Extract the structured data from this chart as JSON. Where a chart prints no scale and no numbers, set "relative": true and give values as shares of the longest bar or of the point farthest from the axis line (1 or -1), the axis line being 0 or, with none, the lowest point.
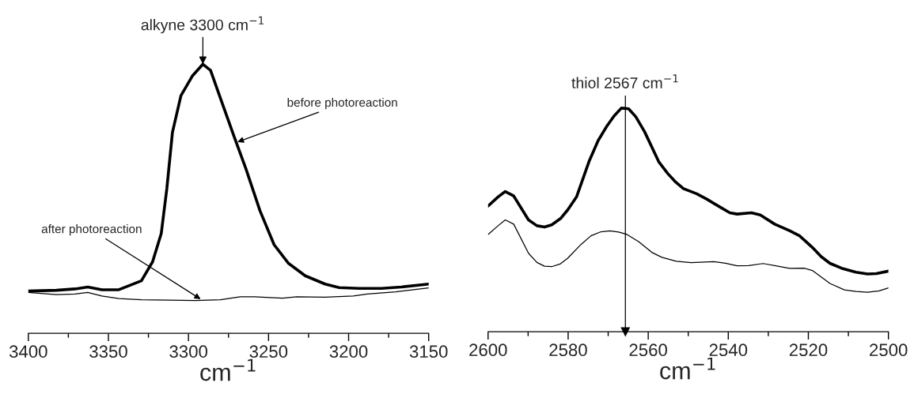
{
  "chart_data": [
    {
      "type": "line",
      "relative": true,
      "xlabel": "cm$^{−1}$",
      "xlim": [
        3400,
        3150
      ],
      "xticks": [
        3400,
        3350,
        3300,
        3250,
        3200,
        3150
      ],
      "series": [
        {
          "color": "#000000",
          "x": [
            3400,
            3382.4,
            3370.8,
            3362.9,
            3354,
            3343.5,
            3329.4,
            3322.4,
            3317,
            3313.5,
            3310,
            3304.7,
            3297.6,
            3291,
            3286.2,
            3280,
            3271.2,
            3264.1,
            3255.3,
            3246.5,
            3237.7,
            3227.1,
            3214.7,
            3205.9,
            3193.6,
            3179.5,
            3167.1,
            3150
          ],
          "values": [
            0.157,
            0.16,
            0.165,
            0.172,
            0.162,
            0.162,
            0.195,
            0.266,
            0.371,
            0.538,
            0.747,
            0.883,
            0.956,
            1.0,
            0.977,
            0.873,
            0.726,
            0.611,
            0.455,
            0.329,
            0.261,
            0.214,
            0.183,
            0.17,
            0.167,
            0.167,
            0.172,
            0.183
          ]
        },
        {
          "color": "#000000",
          "x": [
            3400,
            3382.4,
            3370.9,
            3362.9,
            3354.1,
            3343.5,
            3329.4,
            3311.8,
            3295.9,
            3280.0,
            3267.7,
            3258.9,
            3241.2,
            3232.4,
            3214.7,
            3197.1,
            3188.3,
            3170.6,
            3150
          ],
          "values": [
            0.152,
            0.144,
            0.146,
            0.152,
            0.139,
            0.129,
            0.125,
            0.123,
            0.122,
            0.125,
            0.136,
            0.136,
            0.131,
            0.136,
            0.134,
            0.139,
            0.146,
            0.154,
            0.169
          ]
        }
      ],
      "annotations": [
        {
          "text": "alkyne 3300 cm$^{−1}$",
          "x": 3291,
          "y": 1.0
        },
        {
          "text": "before photoreaction",
          "x": 3269.4,
          "y": 0.711
        },
        {
          "text": "after photoreaction",
          "x": 3292.4,
          "y": 0.127
        }
      ]
    },
    {
      "type": "line",
      "relative": true,
      "xlabel": "cm$^{−1}$",
      "xlim": [
        2600,
        2500
      ],
      "xticks": [
        2600,
        2580,
        2560,
        2540,
        2520,
        2500
      ],
      "series": [
        {
          "color": "#000000",
          "x": [
            2600,
            2597.5,
            2595.7,
            2593.6,
            2589.9,
            2587.8,
            2585.9,
            2584.1,
            2581.9,
            2580.1,
            2577.9,
            2574.7,
            2572.5,
            2570.3,
            2568.5,
            2566.7,
            2564.9,
            2563.1,
            2560.9,
            2557.3,
            2555.1,
            2553.3,
            2551.2,
            2547.9,
            2545.4,
            2542.1,
            2539.6,
            2537.8,
            2534.2,
            2532.0,
            2528.4,
            2524.7,
            2522.2,
            2519.0,
            2516.8,
            2514.6,
            2511.7,
            2508.1,
            2505.2,
            2503.0,
            2500
          ],
          "values": [
            0.562,
            0.603,
            0.627,
            0.607,
            0.5,
            0.474,
            0.468,
            0.478,
            0.506,
            0.545,
            0.603,
            0.765,
            0.855,
            0.92,
            0.965,
            1.0,
            0.997,
            0.961,
            0.894,
            0.758,
            0.707,
            0.672,
            0.64,
            0.617,
            0.593,
            0.558,
            0.532,
            0.526,
            0.532,
            0.522,
            0.481,
            0.452,
            0.429,
            0.377,
            0.336,
            0.306,
            0.284,
            0.266,
            0.258,
            0.26,
            0.271
          ]
        },
        {
          "color": "#000000",
          "x": [
            2600,
            2597.5,
            2595.7,
            2593.6,
            2589.9,
            2587.8,
            2585.9,
            2584.1,
            2581.9,
            2580.1,
            2576.8,
            2574.3,
            2571.8,
            2569.6,
            2567.4,
            2565.3,
            2562.4,
            2559.1,
            2556.6,
            2553.0,
            2549.3,
            2543.6,
            2540.7,
            2537.8,
            2534.9,
            2531.3,
            2527.6,
            2524.7,
            2521.1,
            2519.0,
            2514.6,
            2511.0,
            2508.1,
            2505.2,
            2502.3,
            2500
          ],
          "values": [
            0.435,
            0.474,
            0.5,
            0.481,
            0.351,
            0.31,
            0.293,
            0.291,
            0.304,
            0.329,
            0.39,
            0.429,
            0.447,
            0.451,
            0.446,
            0.435,
            0.403,
            0.355,
            0.333,
            0.315,
            0.309,
            0.313,
            0.306,
            0.295,
            0.296,
            0.305,
            0.293,
            0.283,
            0.284,
            0.274,
            0.216,
            0.187,
            0.18,
            0.177,
            0.183,
            0.196
          ]
        }
      ],
      "ref_lines": [
        {
          "axis": "x",
          "value": 2565.7,
          "label": "thiol 2567 cm$^{−1}$",
          "color": "#000000",
          "line_style": "solid"
        }
      ]
    }
  ]
}
